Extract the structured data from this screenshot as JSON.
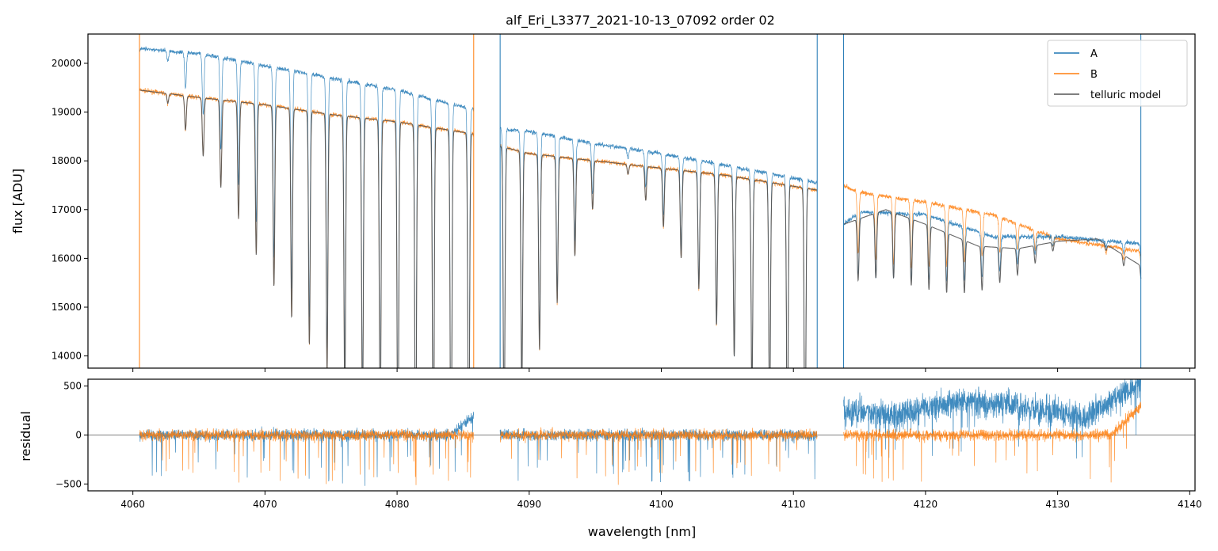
{
  "chart_data": [
    {
      "type": "line",
      "panel": "spectrum",
      "title": "alf_Eri_L3377_2021-10-13_07092  order 02",
      "xlabel": "",
      "ylabel": "flux [ADU]",
      "xlim": [
        4056.6,
        4140.4
      ],
      "ylim": [
        13750,
        20600
      ],
      "xticks": [
        4060,
        4070,
        4080,
        4090,
        4100,
        4110,
        4120,
        4130,
        4140
      ],
      "yticks": [
        14000,
        15000,
        16000,
        17000,
        18000,
        19000,
        20000
      ],
      "legend_position": "top-right",
      "legend": [
        "A",
        "B",
        "telluric model"
      ],
      "segments": [
        [
          4060.5,
          4085.8
        ],
        [
          4087.8,
          4111.8
        ],
        [
          4113.8,
          4136.3
        ]
      ],
      "line_depths": [
        0,
        200,
        700,
        1200,
        1800,
        2400,
        3100,
        3700,
        4300,
        4800,
        5300,
        5800,
        6200,
        6600,
        7000,
        7400,
        7500,
        7600,
        7300,
        6800,
        6000,
        5000,
        4000,
        3000,
        2000,
        1000
      ],
      "series": [
        {
          "name": "A",
          "color": "#1f77b4",
          "x": [
            4060.5,
            4065,
            4070,
            4075,
            4080,
            4085.8,
            4087.8,
            4090,
            4095,
            4100,
            4105,
            4111.8,
            4113.8,
            4115,
            4120,
            4125,
            4130,
            4136.3
          ],
          "y": [
            20300,
            20200,
            19950,
            19700,
            19450,
            19050,
            18650,
            18600,
            18350,
            18150,
            17900,
            17550,
            16700,
            16950,
            16900,
            16450,
            16450,
            16300
          ]
        },
        {
          "name": "B",
          "color": "#ff7f0e",
          "x": [
            4060.5,
            4065,
            4070,
            4075,
            4080,
            4085.8,
            4087.8,
            4090,
            4095,
            4100,
            4105,
            4111.8,
            4113.8,
            4115,
            4120,
            4125,
            4130,
            4136.3
          ],
          "y": [
            19450,
            19300,
            19150,
            18950,
            18800,
            18550,
            18300,
            18150,
            18000,
            17850,
            17700,
            17400,
            17500,
            17350,
            17150,
            16900,
            16400,
            16150
          ]
        },
        {
          "name": "telluric model",
          "color": "#555555",
          "x": [
            4060.5,
            4065,
            4070,
            4075,
            4080,
            4085.8,
            4087.8,
            4090,
            4095,
            4100,
            4105,
            4111.8,
            4113.8,
            4117,
            4120,
            4124,
            4127,
            4130,
            4133,
            4136.3
          ],
          "y": [
            19450,
            19300,
            19150,
            18950,
            18800,
            18550,
            18300,
            18150,
            18000,
            17850,
            17700,
            17400,
            16700,
            17000,
            16700,
            16250,
            16200,
            16350,
            16400,
            15850
          ]
        }
      ]
    },
    {
      "type": "line",
      "panel": "residual",
      "title": "",
      "xlabel": "wavelength [nm]",
      "ylabel": "residual",
      "xlim": [
        4056.6,
        4140.4
      ],
      "ylim": [
        -570,
        570
      ],
      "xticks": [
        4060,
        4070,
        4080,
        4090,
        4100,
        4110,
        4120,
        4130,
        4140
      ],
      "yticks": [
        -500,
        0,
        500
      ],
      "zero_line": true,
      "series": [
        {
          "name": "A",
          "color": "#1f77b4",
          "x": [
            4060.5,
            4084,
            4085.8,
            4087.8,
            4111.8,
            4113.8,
            4118,
            4122,
            4128,
            4132,
            4136.3
          ],
          "y": [
            0,
            0,
            200,
            0,
            0,
            250,
            200,
            350,
            280,
            180,
            550
          ]
        },
        {
          "name": "B",
          "color": "#ff7f0e",
          "x": [
            4060.5,
            4085.8,
            4087.8,
            4111.8,
            4113.8,
            4134,
            4136.3
          ],
          "y": [
            0,
            0,
            0,
            0,
            0,
            0,
            300
          ]
        }
      ]
    }
  ]
}
